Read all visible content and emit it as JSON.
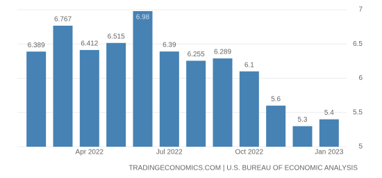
{
  "chart_data": {
    "type": "bar",
    "categories": [
      null,
      null,
      "Apr 2022",
      null,
      null,
      "Jul 2022",
      null,
      null,
      "Oct 2022",
      null,
      null,
      "Jan 2023"
    ],
    "values": [
      6.389,
      6.767,
      6.412,
      6.515,
      6.98,
      6.39,
      6.255,
      6.289,
      6.1,
      5.6,
      5.3,
      5.4
    ],
    "color": "#4682b4",
    "ylim": [
      5,
      7
    ],
    "yticks": [
      5,
      5.5,
      6,
      6.5,
      7
    ],
    "grid": true,
    "source": "TRADINGECONOMICS.COM | U.S. BUREAU OF ECONOMIC ANALYSIS"
  }
}
